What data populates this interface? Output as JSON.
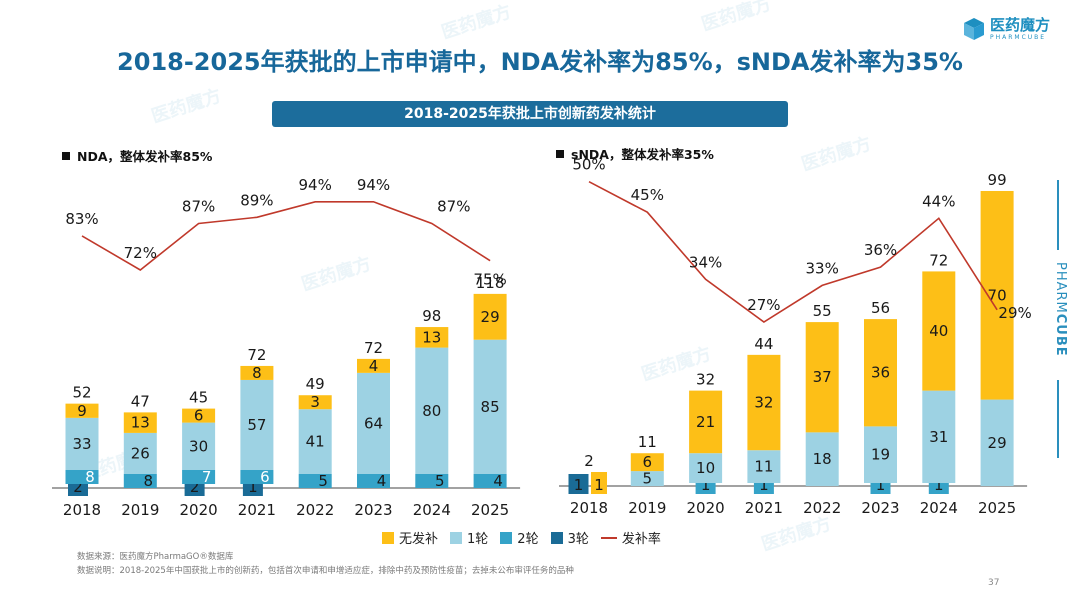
{
  "title": "2018-2025年获批的上市申请中，NDA发补率为85%，sNDA发补率为35%",
  "banner": "2018-2025年获批上市创新药发补统计",
  "logo": {
    "cn": "医药魔方",
    "en": "PHARMCUBE",
    "icon": "cube-logo-icon"
  },
  "brand_vertical": {
    "light": "PHARM",
    "bold": "CUBE"
  },
  "watermark": "医药魔方",
  "colors": {
    "no_supplement": "#fdbf17",
    "round1": "#9dd2e3",
    "round2": "#35a3c8",
    "round3": "#1a6b96",
    "rate_line": "#c0392b",
    "title": "#17679a",
    "banner_bg": "#1c6d9c"
  },
  "legend": [
    {
      "key": "no_supplement",
      "label": "无发补"
    },
    {
      "key": "round1",
      "label": "1轮"
    },
    {
      "key": "round2",
      "label": "2轮"
    },
    {
      "key": "round3",
      "label": "3轮"
    },
    {
      "key": "rate_line",
      "label": "发补率"
    }
  ],
  "footer": {
    "source": "数据来源：医药魔方PharmaGO®数据库",
    "note": "数据说明：2018-2025年中国获批上市的创新药，包括首次申请和申增适应症，排除中药及预防性疫苗；去掉未公布审评任务的品种"
  },
  "page_number": "37",
  "chart_data": [
    {
      "type": "bar",
      "stacked": true,
      "title": "NDA，整体发补率85%",
      "categories": [
        "2018",
        "2019",
        "2020",
        "2021",
        "2022",
        "2023",
        "2024",
        "2025"
      ],
      "series": [
        {
          "name": "3轮",
          "key": "round3",
          "values": [
            2,
            0,
            2,
            1,
            0,
            0,
            0,
            0
          ]
        },
        {
          "name": "2轮",
          "key": "round2",
          "values": [
            8,
            8,
            7,
            6,
            5,
            4,
            5,
            4
          ]
        },
        {
          "name": "1轮",
          "key": "round1",
          "values": [
            33,
            26,
            30,
            57,
            41,
            64,
            80,
            85
          ]
        },
        {
          "name": "无发补",
          "key": "no_supplement",
          "values": [
            9,
            13,
            6,
            8,
            3,
            4,
            13,
            29
          ]
        }
      ],
      "totals": [
        52,
        47,
        45,
        72,
        49,
        72,
        98,
        118
      ],
      "line": {
        "name": "发补率",
        "values": [
          83,
          72,
          87,
          89,
          94,
          94,
          87,
          75
        ],
        "unit": "%"
      },
      "xlabel": "",
      "ylabel": "",
      "ylim": [
        0,
        125
      ],
      "rate_ylim": [
        0,
        100
      ],
      "grid": false
    },
    {
      "type": "bar",
      "stacked": true,
      "title": "sNDA，整体发补率35%",
      "categories": [
        "2018",
        "2019",
        "2020",
        "2021",
        "2022",
        "2023",
        "2024",
        "2025"
      ],
      "series": [
        {
          "name": "3轮",
          "key": "round3",
          "values": [
            1,
            0,
            0,
            0,
            0,
            0,
            0,
            0
          ]
        },
        {
          "name": "2轮",
          "key": "round2",
          "values": [
            0,
            0,
            1,
            1,
            0,
            1,
            1,
            0
          ]
        },
        {
          "name": "1轮",
          "key": "round1",
          "values": [
            0,
            5,
            10,
            11,
            18,
            19,
            31,
            29
          ]
        },
        {
          "name": "无发补",
          "key": "no_supplement",
          "values": [
            1,
            6,
            21,
            32,
            37,
            36,
            40,
            70
          ]
        }
      ],
      "totals": [
        2,
        11,
        32,
        44,
        55,
        56,
        72,
        99
      ],
      "line": {
        "name": "发补率",
        "values": [
          50,
          45,
          34,
          27,
          33,
          36,
          44,
          29
        ],
        "unit": "%"
      },
      "xlabel": "",
      "ylabel": "",
      "ylim": [
        0,
        105
      ],
      "rate_ylim": [
        0,
        60
      ],
      "grid": false
    }
  ]
}
